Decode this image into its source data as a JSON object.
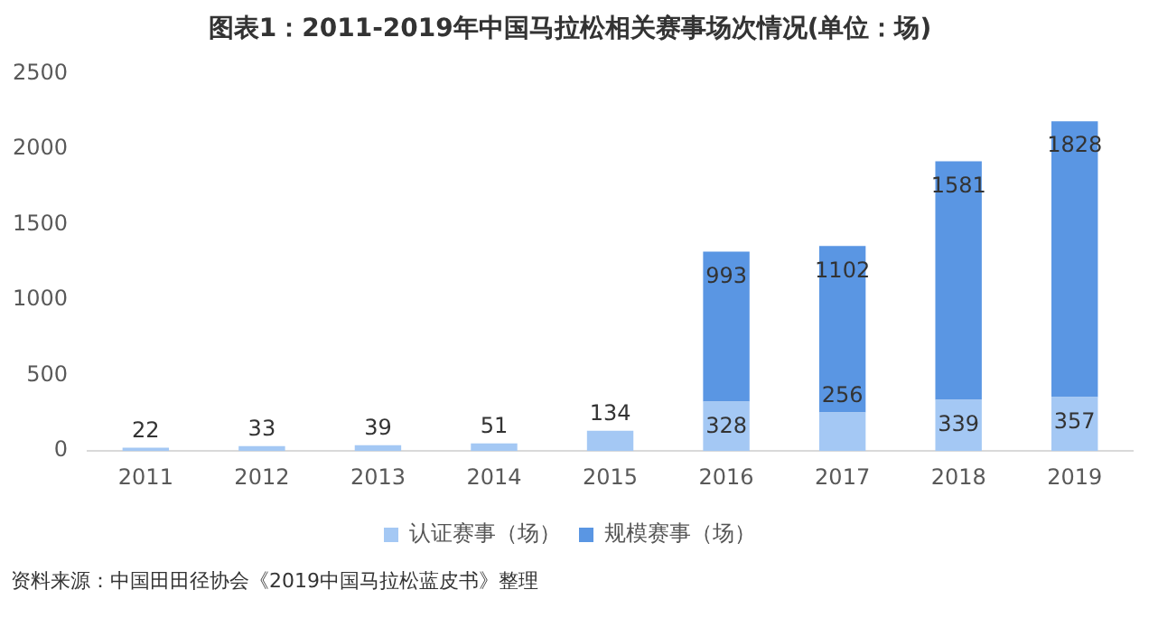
{
  "chart_data": {
    "type": "bar",
    "stacked": true,
    "title": "图表1：2011-2019年中国马拉松相关赛事场次情况(单位：场)",
    "categories": [
      "2011",
      "2012",
      "2013",
      "2014",
      "2015",
      "2016",
      "2017",
      "2018",
      "2019"
    ],
    "series": [
      {
        "name": "认证赛事（场）",
        "color": "#a4c8f4",
        "values": [
          22,
          33,
          39,
          51,
          134,
          328,
          256,
          339,
          357
        ]
      },
      {
        "name": "规模赛事（场）",
        "color": "#5a96e3",
        "values": [
          null,
          null,
          null,
          null,
          null,
          993,
          1102,
          1581,
          1828
        ]
      }
    ],
    "ylim": [
      0,
      2500
    ],
    "yticks": [
      0,
      500,
      1000,
      1500,
      2000,
      2500
    ],
    "grid": false,
    "legend": "bottom",
    "data_labels": true,
    "annotations": [
      "资料来源：中国田田径协会《2019中国马拉松蓝皮书》整理"
    ]
  }
}
